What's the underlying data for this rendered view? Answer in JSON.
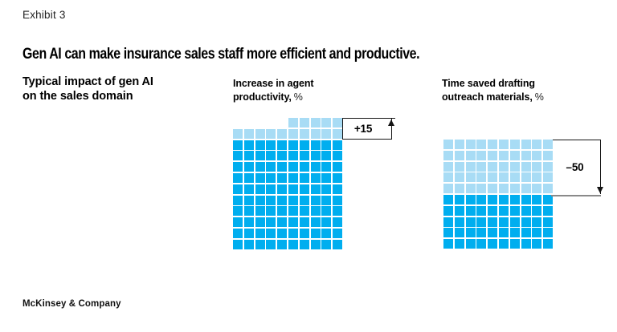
{
  "page": {
    "exhibit_label": "Exhibit 3",
    "title": "Gen AI can make insurance sales staff more efficient and productive.",
    "lead_line1": "Typical impact of gen AI",
    "lead_line2": "on the sales domain",
    "footer": "McKinsey & Company"
  },
  "colors": {
    "light_blue": "#A8DCF5",
    "dark_blue": "#00AEEF",
    "line_black": "#141414",
    "line_gray": "#8A8A8A"
  },
  "chart_data": [
    {
      "type": "waffle",
      "title_line1": "Increase in agent",
      "title_line2": "productivity,",
      "unit": "%",
      "columns": 10,
      "light_squares": 15,
      "dark_squares": 100,
      "annotation": {
        "label": "+15",
        "value": 15,
        "direction": "up"
      }
    },
    {
      "type": "waffle",
      "title_line1": "Time saved drafting",
      "title_line2": "outreach materials,",
      "unit": "%",
      "columns": 10,
      "light_squares": 50,
      "dark_squares": 50,
      "annotation": {
        "label": "–50",
        "value": -50,
        "direction": "down"
      }
    }
  ]
}
